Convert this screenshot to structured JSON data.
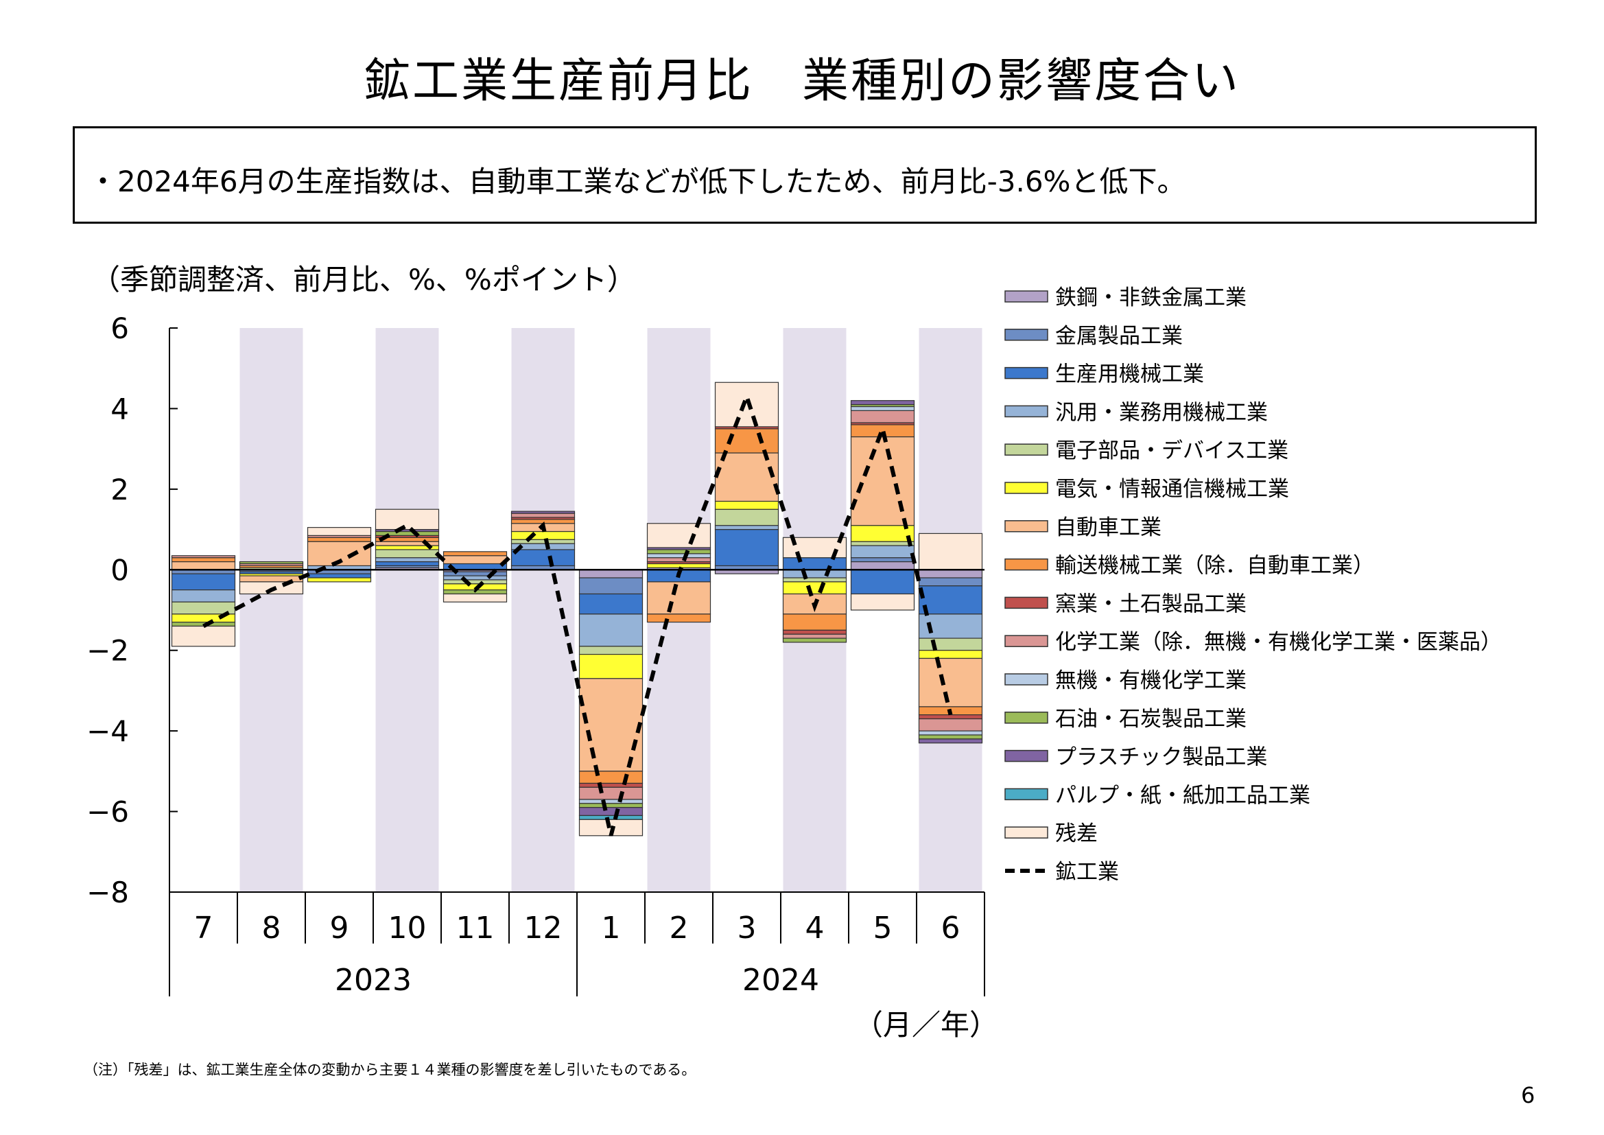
{
  "title": "鉱工業生産前月比　業種別の影響度合い",
  "summary": "・2024年6月の生産指数は、自動車工業などが低下したため、前月比-3.6%と低下。",
  "unit_label": "（季節調整済、前月比、%、%ポイント）",
  "x_unit_label": "（月／年）",
  "note": "（注）「残差」は、鉱工業生産全体の変動から主要１４業種の影響度を差し引いたものである。",
  "page_number": "6",
  "chart_data": {
    "type": "bar",
    "stacked": true,
    "categories": [
      "7",
      "8",
      "9",
      "10",
      "11",
      "12",
      "1",
      "2",
      "3",
      "4",
      "5",
      "6"
    ],
    "years": [
      {
        "label": "2023",
        "months": 6
      },
      {
        "label": "2024",
        "months": 6
      }
    ],
    "ylim": [
      -8,
      6
    ],
    "yticks": [
      "6",
      "4",
      "2",
      "0",
      "−2",
      "−4",
      "−6",
      "−8"
    ],
    "ytick_values": [
      6,
      4,
      2,
      0,
      -2,
      -4,
      -6,
      -8
    ],
    "shaded_categories": [
      "8",
      "10",
      "12",
      "2",
      "4",
      "6"
    ],
    "series": [
      {
        "name": "鉄鋼・非鉄金属工業",
        "color": "#b2a2c7",
        "values": [
          0.0,
          0.0,
          0.0,
          0.05,
          -0.05,
          0.0,
          -0.2,
          0.05,
          -0.1,
          0.0,
          0.2,
          -0.2
        ]
      },
      {
        "name": "金属製品工業",
        "color": "#6d8dc4",
        "values": [
          -0.1,
          -0.05,
          -0.1,
          0.05,
          -0.1,
          0.1,
          -0.4,
          0.0,
          0.1,
          0.0,
          0.1,
          -0.2
        ]
      },
      {
        "name": "生産用機械工業",
        "color": "#3c78cc",
        "values": [
          -0.4,
          -0.05,
          -0.1,
          0.1,
          0.15,
          0.4,
          -0.5,
          -0.3,
          0.9,
          0.3,
          -0.6,
          -0.7
        ]
      },
      {
        "name": "汎用・業務用機械工業",
        "color": "#95b3d7",
        "values": [
          -0.3,
          0.0,
          0.1,
          0.1,
          -0.1,
          0.15,
          -0.8,
          0.0,
          0.1,
          -0.2,
          0.3,
          -0.6
        ]
      },
      {
        "name": "電子部品・デバイス工業",
        "color": "#c3d69b",
        "values": [
          -0.3,
          0.05,
          0.0,
          0.2,
          -0.1,
          0.1,
          -0.2,
          0.0,
          0.4,
          -0.1,
          0.1,
          -0.3
        ]
      },
      {
        "name": "電気・情報通信機械工業",
        "color": "#ffff33",
        "values": [
          -0.2,
          -0.05,
          -0.1,
          0.1,
          -0.15,
          0.2,
          -0.6,
          0.1,
          0.2,
          -0.3,
          0.4,
          -0.2
        ]
      },
      {
        "name": "自動車工業",
        "color": "#f9bd8f",
        "values": [
          0.2,
          -0.15,
          0.6,
          0.1,
          0.2,
          0.2,
          -2.3,
          -0.8,
          1.2,
          -0.5,
          2.2,
          -1.2
        ]
      },
      {
        "name": "輸送機械工業（除．自動車工業）",
        "color": "#f79646",
        "values": [
          0.1,
          0.05,
          0.1,
          0.1,
          0.1,
          0.1,
          -0.3,
          -0.2,
          0.6,
          -0.4,
          0.3,
          -0.2
        ]
      },
      {
        "name": "窯業・土石製品工業",
        "color": "#c0504d",
        "values": [
          0.0,
          0.0,
          0.0,
          0.05,
          0.0,
          0.05,
          -0.1,
          0.05,
          0.05,
          -0.1,
          0.05,
          -0.1
        ]
      },
      {
        "name": "化学工業（除．無機・有機化学工業・医薬品）",
        "color": "#da9694",
        "values": [
          0.05,
          0.05,
          0.05,
          0.0,
          0.0,
          0.1,
          -0.3,
          0.1,
          0.0,
          -0.1,
          0.3,
          -0.3
        ]
      },
      {
        "name": "無機・有機化学工業",
        "color": "#b8cce4",
        "values": [
          0.0,
          0.0,
          0.0,
          0.0,
          0.0,
          0.0,
          -0.1,
          0.1,
          0.0,
          0.0,
          0.1,
          -0.1
        ]
      },
      {
        "name": "石油・石炭製品工業",
        "color": "#9bbb59",
        "values": [
          -0.1,
          0.05,
          0.0,
          0.1,
          -0.1,
          0.0,
          -0.1,
          0.1,
          0.0,
          -0.1,
          0.05,
          -0.1
        ]
      },
      {
        "name": "プラスチック製品工業",
        "color": "#8064a2",
        "values": [
          0.0,
          0.0,
          0.0,
          0.05,
          0.0,
          0.05,
          -0.2,
          0.05,
          0.0,
          0.0,
          0.1,
          -0.1
        ]
      },
      {
        "name": "パルプ・紙・紙加工品工業",
        "color": "#4bacc6",
        "values": [
          0.0,
          0.0,
          0.0,
          0.0,
          0.0,
          0.0,
          -0.1,
          0.0,
          0.0,
          0.0,
          0.0,
          0.0
        ]
      },
      {
        "name": "残差",
        "color": "#fde9d9",
        "values": [
          -0.5,
          -0.3,
          0.2,
          0.5,
          -0.2,
          0.0,
          -0.4,
          0.6,
          1.1,
          0.5,
          -0.4,
          0.9
        ]
      }
    ],
    "line": {
      "name": "鉱工業",
      "values": [
        -1.4,
        -0.5,
        0.2,
        1.1,
        -0.5,
        1.1,
        -6.6,
        -0.1,
        4.3,
        -0.9,
        3.5,
        -3.6
      ]
    }
  }
}
